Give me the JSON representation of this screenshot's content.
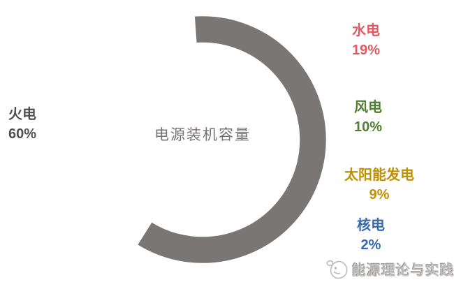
{
  "chart_data": {
    "type": "pie",
    "subtype": "donut",
    "title": "电源装机容量",
    "title_color": "#767070",
    "start_angle_deg": -4,
    "direction": "clockwise",
    "legend_position": "labels-around",
    "separator_color": "#ffffff",
    "background_color": "#ffffff",
    "series": [
      {
        "name": "水电",
        "value": 19,
        "pct_label": "19%",
        "color": "#EC5A72",
        "label_color": "#DE5B66"
      },
      {
        "name": "风电",
        "value": 10,
        "pct_label": "10%",
        "color": "#548235",
        "label_color": "#507E30"
      },
      {
        "name": "太阳能发电",
        "value": 9,
        "pct_label": "9%",
        "color": "#FFC000",
        "label_color": "#BF9000"
      },
      {
        "name": "核电",
        "value": 2,
        "pct_label": "2%",
        "color": "#4472C4",
        "label_color": "#3568AE"
      },
      {
        "name": "火电",
        "value": 60,
        "pct_label": "60%",
        "color": "#7B7676",
        "label_color": "#525050"
      }
    ]
  },
  "watermark": {
    "text": "能源理论与实践",
    "icon": "whale-icon",
    "color": "#b7b3b3"
  }
}
